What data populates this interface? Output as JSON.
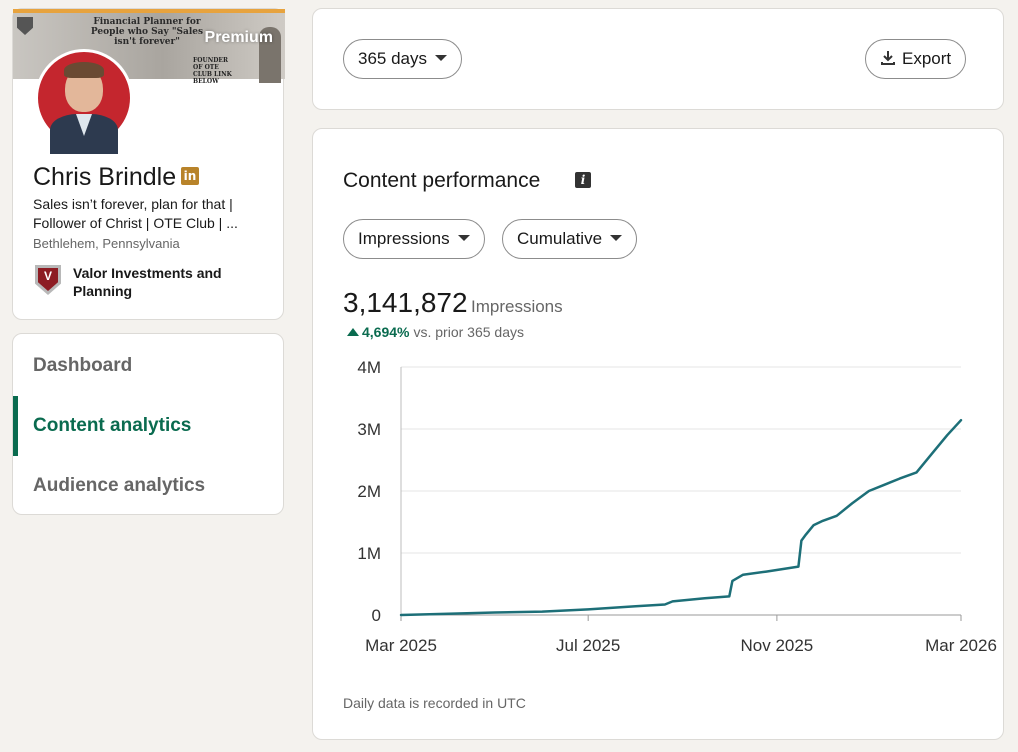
{
  "profile": {
    "banner_text": "Financial Planner for People who Say \"Sales isn't forever\"",
    "banner_sub": "FOUNDER OF OTE CLUB LINK BELOW",
    "premium_label": "Premium",
    "name": "Chris Brindle",
    "linkedin_badge": "in",
    "headline": "Sales isn’t forever, plan for that | Follower of Christ | OTE Club | ...",
    "location": "Bethlehem, Pennsylvania",
    "company": "Valor Investments and Planning",
    "company_logo_letter": "V"
  },
  "nav": {
    "items": [
      {
        "label": "Dashboard",
        "active": false
      },
      {
        "label": "Content analytics",
        "active": true
      },
      {
        "label": "Audience analytics",
        "active": false
      }
    ]
  },
  "controls": {
    "range_label": "365 days",
    "export_label": "Export"
  },
  "performance": {
    "title": "Content performance",
    "info_icon": "i",
    "metric_filter": "Impressions",
    "mode_filter": "Cumulative",
    "total_value": "3,141,872",
    "total_label": "Impressions",
    "delta_pct": "4,694%",
    "delta_label": "vs. prior 365 days",
    "footnote": "Daily data is recorded in UTC"
  },
  "chart_data": {
    "type": "line",
    "y_ticks": [
      "4M",
      "3M",
      "2M",
      "1M",
      "0"
    ],
    "y_tick_values": [
      4000000,
      3000000,
      2000000,
      1000000,
      0
    ],
    "ylim": [
      0,
      4000000
    ],
    "x_tick_labels": [
      "Mar 2025",
      "Jul 2025",
      "Nov 2025",
      "Mar 2026"
    ],
    "x_tick_dates": [
      "2025-03-01",
      "2025-07-01",
      "2025-11-01",
      "2026-03-01"
    ],
    "line_color": "#1d6f78",
    "grid": true,
    "series": [
      {
        "values": [
          [
            "2025-03-01",
            0
          ],
          [
            "2025-04-01",
            20000
          ],
          [
            "2025-05-01",
            40000
          ],
          [
            "2025-06-01",
            55000
          ],
          [
            "2025-07-01",
            90000
          ],
          [
            "2025-08-01",
            140000
          ],
          [
            "2025-08-20",
            170000
          ],
          [
            "2025-08-25",
            220000
          ],
          [
            "2025-09-15",
            270000
          ],
          [
            "2025-10-01",
            300000
          ],
          [
            "2025-10-03",
            550000
          ],
          [
            "2025-10-10",
            650000
          ],
          [
            "2025-10-25",
            700000
          ],
          [
            "2025-11-15",
            780000
          ],
          [
            "2025-11-17",
            1200000
          ],
          [
            "2025-11-20",
            1300000
          ],
          [
            "2025-11-25",
            1450000
          ],
          [
            "2025-12-01",
            1520000
          ],
          [
            "2025-12-10",
            1600000
          ],
          [
            "2025-12-20",
            1800000
          ],
          [
            "2025-12-31",
            2000000
          ],
          [
            "2026-01-10",
            2100000
          ],
          [
            "2026-01-20",
            2200000
          ],
          [
            "2026-01-31",
            2300000
          ],
          [
            "2026-02-10",
            2600000
          ],
          [
            "2026-02-20",
            2900000
          ],
          [
            "2026-03-01",
            3141872
          ]
        ]
      }
    ]
  }
}
